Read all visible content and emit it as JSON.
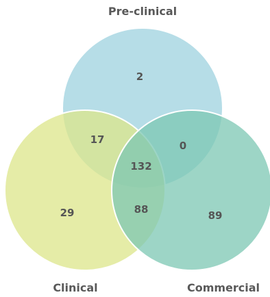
{
  "venn": {
    "sets": [
      {
        "key": "preclinical",
        "label": "Pre-clinical",
        "color": "#9DD2DF"
      },
      {
        "key": "clinical",
        "label": "Clinical",
        "color": "#DCE68A"
      },
      {
        "key": "commercial",
        "label": "Commercial",
        "color": "#7CC7B3"
      }
    ],
    "regions": {
      "preclinical_only": "2",
      "clinical_only": "29",
      "commercial_only": "89",
      "preclinical_clinical": "17",
      "preclinical_commercial": "0",
      "clinical_commercial": "88",
      "all_three": "132"
    }
  }
}
